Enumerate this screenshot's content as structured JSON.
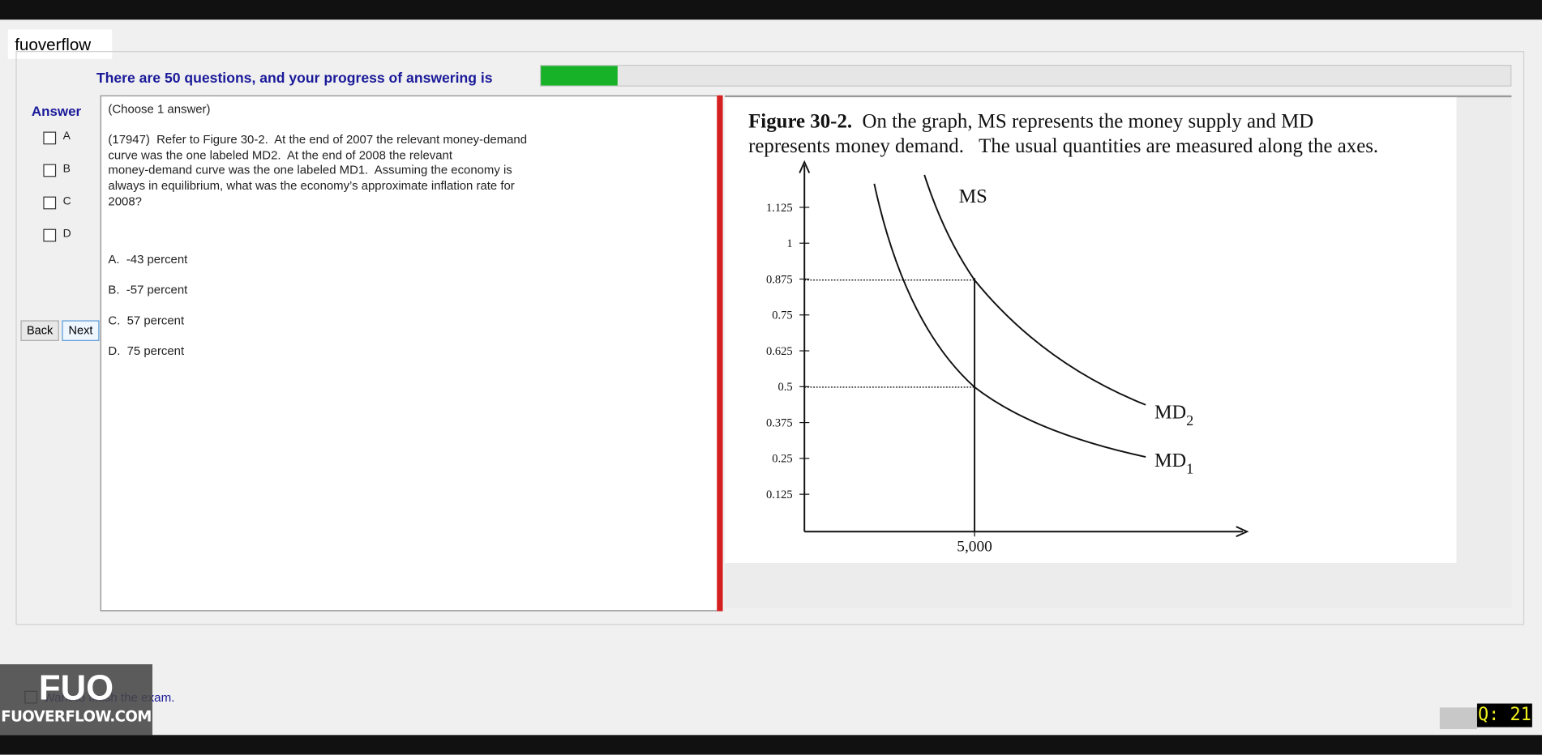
{
  "app_label": "fuoverflow",
  "progress": {
    "text": "There are 50 questions, and your progress of answering is"
  },
  "answer_panel": {
    "title": "Answer",
    "options": [
      "A",
      "B",
      "C",
      "D"
    ],
    "back": "Back",
    "next": "Next"
  },
  "question": {
    "instruction": "(Choose 1 answer)",
    "lines": [
      "(17947)  Refer to Figure 30-2.  At the end of 2007 the relevant money-demand",
      "curve was the one labeled MD2.  At the end of 2008 the relevant",
      "money-demand curve was the one labeled MD1.  Assuming the economy is",
      "always in equilibrium, what was the economy’s approximate inflation rate for",
      "2008?"
    ],
    "choices": [
      "A.  -43 percent",
      "B.  -57 percent",
      "C.  57 percent",
      "D.  75 percent"
    ]
  },
  "figure": {
    "caption_bold": "Figure 30-2.",
    "caption_line1": "On the graph, MS represents the money supply and MD",
    "caption_line2": "represents money demand.   The usual quantities are measured along the axes.",
    "yticks": [
      "1.125",
      "1",
      "0.875",
      "0.75",
      "0.625",
      "0.5",
      "0.375",
      "0.25",
      "0.125"
    ],
    "xtick": "5,000",
    "ms_label": "MS",
    "md2_label": "MD",
    "md2_sub": "2",
    "md1_label": "MD",
    "md1_sub": "1"
  },
  "finish": "Want to finish the exam.",
  "logo": {
    "big": "FUO",
    "small": "FUOVERFLOW.COM"
  },
  "question_counter": "Q: 21"
}
